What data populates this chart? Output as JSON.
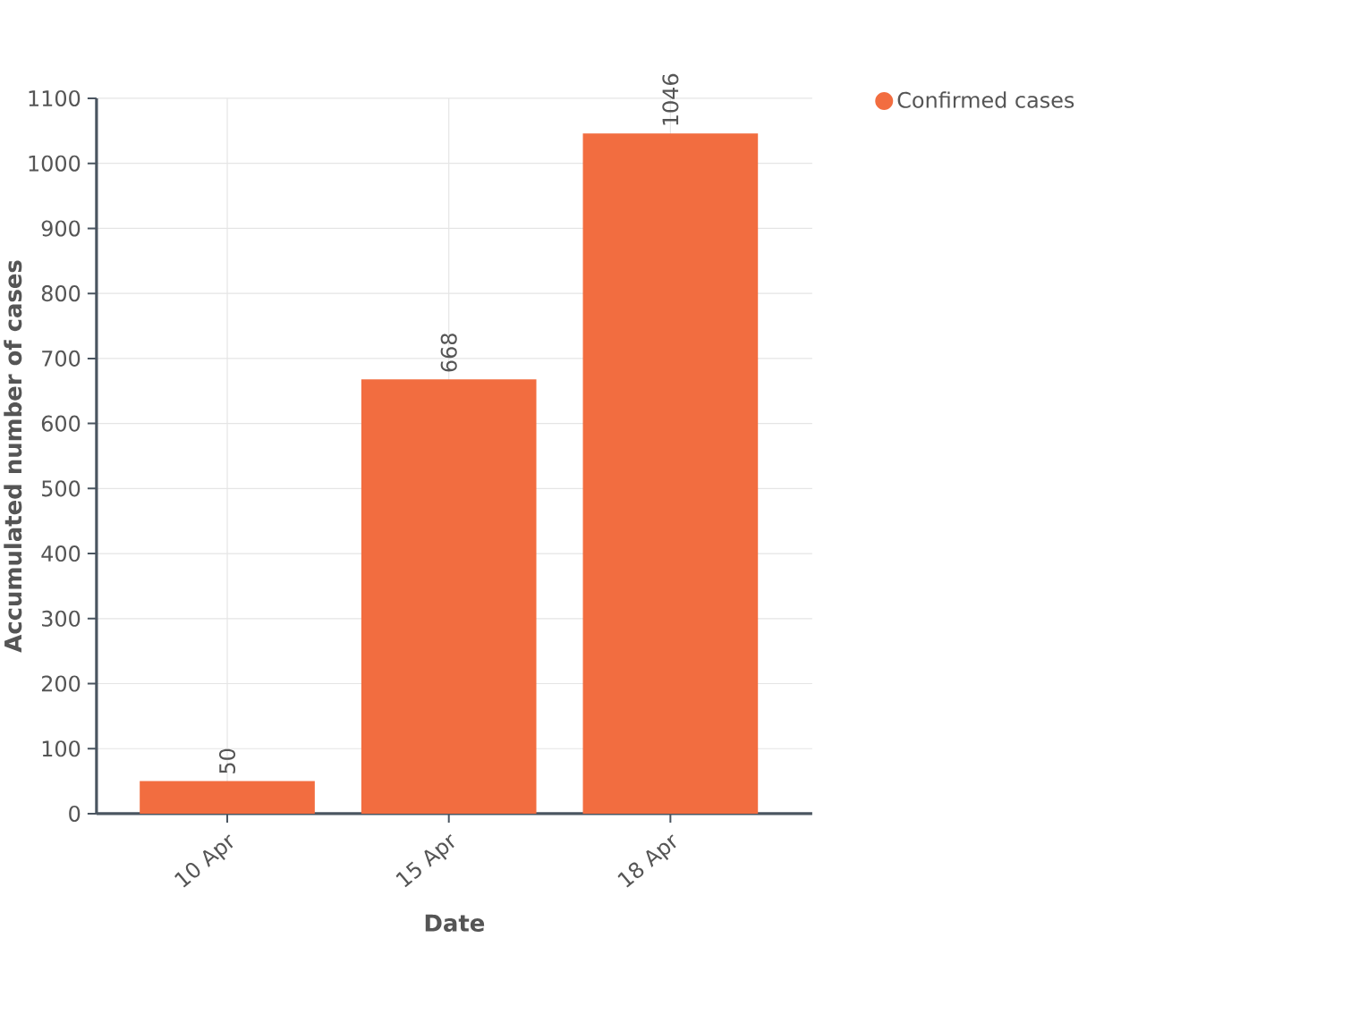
{
  "chart_data": {
    "type": "bar",
    "xlabel": "Date",
    "ylabel": "Accumulated number of cases",
    "categories": [
      "10 Apr",
      "15 Apr",
      "18 Apr"
    ],
    "series": [
      {
        "name": "Confirmed cases",
        "color": "#f26d40",
        "values": [
          50,
          668,
          1046
        ]
      }
    ],
    "ylim": [
      0,
      1100
    ],
    "yticks": [
      0,
      100,
      200,
      300,
      400,
      500,
      600,
      700,
      800,
      900,
      1000,
      1100
    ],
    "grid": true,
    "legend": "top right",
    "data_labels": true
  }
}
